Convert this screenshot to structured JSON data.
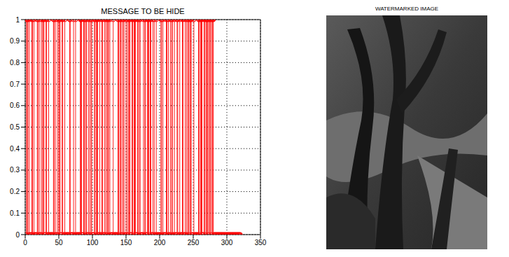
{
  "chart_data": [
    {
      "type": "stem",
      "title": "MESSAGE TO BE HIDE",
      "color": "#ff0000",
      "marker": "o",
      "line_style": "solid",
      "grid": true,
      "xlim": [
        0,
        350
      ],
      "xticks": [
        0,
        50,
        100,
        150,
        200,
        250,
        300,
        350
      ],
      "ylim": [
        0,
        1
      ],
      "yticks": [
        0,
        0.1,
        0.2,
        0.3,
        0.4,
        0.5,
        0.6,
        0.7,
        0.8,
        0.9,
        1
      ],
      "x": [
        1,
        2,
        3,
        4,
        5,
        6,
        7,
        8,
        9,
        10,
        11,
        12,
        13,
        14,
        15,
        16,
        17,
        18,
        19,
        20,
        21,
        22,
        23,
        24,
        25,
        26,
        27,
        28,
        29,
        30,
        31,
        32,
        33,
        34,
        35,
        36,
        37,
        38,
        39,
        40,
        41,
        42,
        43,
        44,
        45,
        46,
        47,
        48,
        49,
        50,
        51,
        52,
        53,
        54,
        55,
        56,
        57,
        58,
        59,
        60,
        61,
        62,
        63,
        64,
        65,
        66,
        67,
        68,
        69,
        70,
        71,
        72,
        73,
        74,
        75,
        76,
        77,
        78,
        79,
        80,
        81,
        82,
        83,
        84,
        85,
        86,
        87,
        88,
        89,
        90,
        91,
        92,
        93,
        94,
        95,
        96,
        97,
        98,
        99,
        100,
        101,
        102,
        103,
        104,
        105,
        106,
        107,
        108,
        109,
        110,
        111,
        112,
        113,
        114,
        115,
        116,
        117,
        118,
        119,
        120,
        121,
        122,
        123,
        124,
        125,
        126,
        127,
        128,
        129,
        130,
        131,
        132,
        133,
        134,
        135,
        136,
        137,
        138,
        139,
        140,
        141,
        142,
        143,
        144,
        145,
        146,
        147,
        148,
        149,
        150,
        151,
        152,
        153,
        154,
        155,
        156,
        157,
        158,
        159,
        160,
        161,
        162,
        163,
        164,
        165,
        166,
        167,
        168,
        169,
        170,
        171,
        172,
        173,
        174,
        175,
        176,
        177,
        178,
        179,
        180,
        181,
        182,
        183,
        184,
        185,
        186,
        187,
        188,
        189,
        190,
        191,
        192,
        193,
        194,
        195,
        196,
        197,
        198,
        199,
        200,
        201,
        202,
        203,
        204,
        205,
        206,
        207,
        208,
        209,
        210,
        211,
        212,
        213,
        214,
        215,
        216,
        217,
        218,
        219,
        220,
        221,
        222,
        223,
        224,
        225,
        226,
        227,
        228,
        229,
        230,
        231,
        232,
        233,
        234,
        235,
        236,
        237,
        238,
        239,
        240,
        241,
        242,
        243,
        244,
        245,
        246,
        247,
        248,
        249,
        250,
        251,
        252,
        253,
        254,
        255,
        256,
        257,
        258,
        259,
        260,
        261,
        262,
        263,
        264,
        265,
        266,
        267,
        268,
        269,
        270,
        271,
        272,
        273,
        274,
        275,
        276,
        277,
        278,
        279,
        280,
        281,
        282,
        283,
        284,
        285,
        286,
        287,
        288,
        289,
        290,
        291,
        292,
        293,
        294,
        295,
        296,
        297,
        298,
        299,
        300,
        301,
        302,
        303,
        304,
        305,
        306,
        307,
        308,
        309,
        310,
        311,
        312,
        313,
        314,
        315,
        316,
        317,
        318,
        319,
        320
      ],
      "values": [
        0,
        1,
        1,
        1,
        0,
        1,
        0,
        0,
        0,
        1,
        1,
        0,
        1,
        0,
        0,
        0,
        0,
        1,
        1,
        0,
        1,
        0,
        0,
        1,
        0,
        1,
        1,
        1,
        0,
        0,
        1,
        1,
        0,
        0,
        1,
        0,
        0,
        0,
        0,
        0,
        0,
        1,
        1,
        0,
        1,
        0,
        0,
        1,
        0,
        1,
        1,
        1,
        0,
        0,
        1,
        1,
        0,
        0,
        1,
        0,
        0,
        0,
        0,
        0,
        0,
        1,
        1,
        0,
        0,
        0,
        0,
        1,
        0,
        0,
        1,
        0,
        0,
        0,
        0,
        0,
        0,
        1,
        1,
        1,
        0,
        0,
        1,
        1,
        0,
        1,
        1,
        0,
        0,
        1,
        0,
        1,
        0,
        1,
        1,
        0,
        0,
        0,
        1,
        1,
        0,
        1,
        1,
        1,
        0,
        0,
        1,
        0,
        0,
        1,
        1,
        0,
        0,
        1,
        0,
        1,
        0,
        1,
        1,
        1,
        0,
        1,
        0,
        0,
        0,
        0,
        1,
        0,
        0,
        0,
        0,
        0,
        0,
        1,
        1,
        0,
        1,
        1,
        0,
        1,
        0,
        1,
        1,
        0,
        0,
        1,
        0,
        1,
        0,
        1,
        1,
        1,
        0,
        0,
        1,
        1,
        0,
        1,
        1,
        1,
        0,
        0,
        1,
        1,
        0,
        1,
        1,
        0,
        0,
        0,
        0,
        1,
        0,
        1,
        1,
        0,
        0,
        1,
        1,
        1,
        0,
        1,
        1,
        0,
        0,
        1,
        0,
        1,
        0,
        0,
        1,
        0,
        0,
        0,
        0,
        0,
        0,
        1,
        1,
        0,
        1,
        0,
        0,
        0,
        0,
        1,
        1,
        0,
        1,
        0,
        0,
        1,
        0,
        1,
        1,
        0,
        0,
        1,
        0,
        0,
        0,
        1,
        1,
        0,
        0,
        1,
        0,
        0,
        0,
        1,
        1,
        0,
        0,
        1,
        0,
        1,
        0,
        1,
        1,
        0,
        1,
        1,
        1,
        0,
        0,
        0,
        1,
        0,
        0,
        0,
        0,
        0,
        0,
        1,
        1,
        0,
        1,
        1,
        1,
        0,
        0,
        1,
        1,
        0,
        1,
        1,
        1,
        1,
        0,
        1,
        1,
        1,
        0,
        1,
        1,
        1,
        0,
        0,
        0,
        0,
        0,
        0,
        0,
        0,
        0,
        0,
        0,
        0,
        0,
        0,
        0,
        0,
        0,
        0,
        0,
        0,
        0,
        0,
        0,
        0,
        0,
        0,
        0,
        0,
        0,
        0,
        0,
        0,
        0,
        0,
        0,
        0,
        0,
        0,
        0,
        0
      ]
    },
    {
      "type": "image",
      "title": "WATERMARKED IMAGE"
    }
  ]
}
